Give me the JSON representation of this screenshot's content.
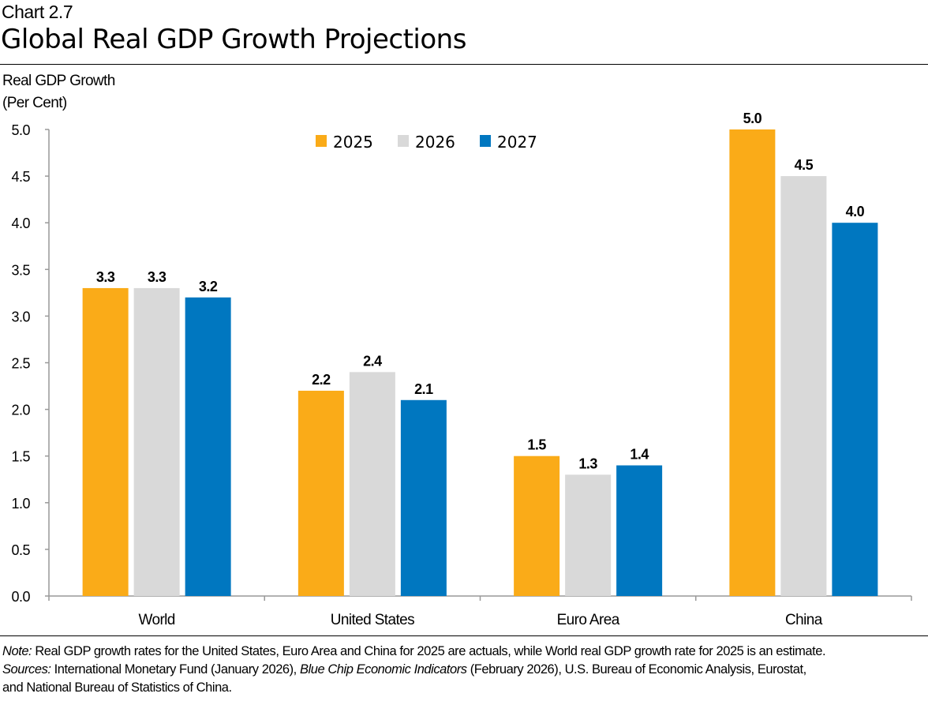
{
  "header": {
    "chart_number": "Chart 2.7",
    "title": "Global Real GDP Growth Projections"
  },
  "chart_data": {
    "type": "bar",
    "title": "Global Real GDP Growth Projections",
    "ylabel_line1": "Real GDP Growth",
    "ylabel_line2": "(Per Cent)",
    "categories": [
      "World",
      "United States",
      "Euro Area",
      "China"
    ],
    "series": [
      {
        "name": "2025",
        "color": "#FAAB18",
        "values": [
          3.3,
          2.2,
          1.5,
          5.0
        ]
      },
      {
        "name": "2026",
        "color": "#D9D9D9",
        "values": [
          3.3,
          2.4,
          1.3,
          4.5
        ]
      },
      {
        "name": "2027",
        "color": "#0077C0",
        "values": [
          3.2,
          2.1,
          1.4,
          4.0
        ]
      }
    ],
    "ylim": [
      0,
      5
    ],
    "yticks": [
      "0.0",
      "0.5",
      "1.0",
      "1.5",
      "2.0",
      "2.5",
      "3.0",
      "3.5",
      "4.0",
      "4.5",
      "5.0"
    ],
    "grid": false,
    "legend_position": "top-center",
    "data_labels": true
  },
  "notes": {
    "note_label": "Note:",
    "note_text": " Real GDP growth rates for the United States, Euro Area and China for 2025 are actuals, while World real GDP growth rate for 2025 is an estimate.",
    "sources_label": "Sources:",
    "sources_text1": " International Monetary Fund (January 2026), ",
    "sources_italic": "Blue Chip Economic Indicators",
    "sources_text2": " (February 2026), U.S. Bureau of Economic Analysis, Eurostat,",
    "sources_line2": "and National Bureau of Statistics of China."
  }
}
